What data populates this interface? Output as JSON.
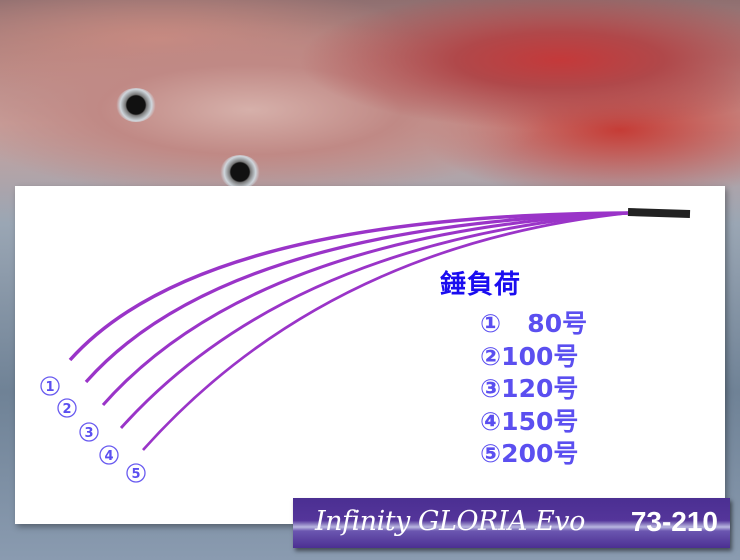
{
  "legend": {
    "title": "錘負荷",
    "items": [
      {
        "marker": "①",
        "value": "  80号"
      },
      {
        "marker": "②",
        "value": "100号"
      },
      {
        "marker": "③",
        "value": "120号"
      },
      {
        "marker": "④",
        "value": "150号"
      },
      {
        "marker": "⑤",
        "value": "200号"
      }
    ]
  },
  "rod_markers": [
    "①",
    "②",
    "③",
    "④",
    "⑤"
  ],
  "banner": {
    "brand": "Infinity GLORIA Evo",
    "model": "73-210"
  },
  "colors": {
    "rod": "#9a34c8",
    "banner": "#4b2f92",
    "legend_title": "#1a0cf0",
    "legend_text": "#5b4ff0"
  }
}
